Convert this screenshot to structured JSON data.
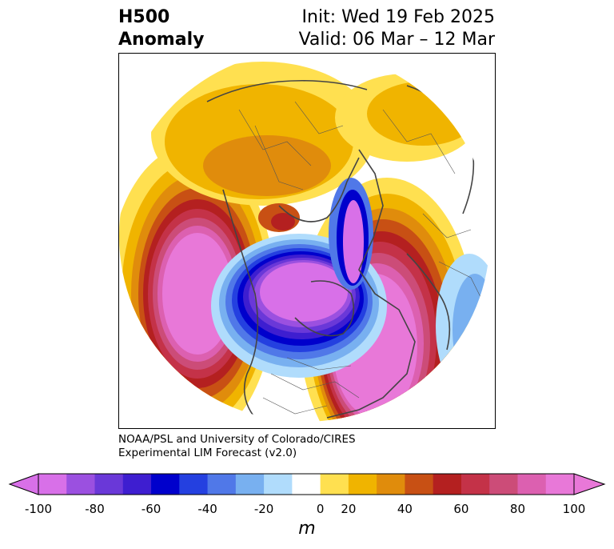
{
  "title": {
    "line1_left": "H500",
    "line2_left": "Anomaly",
    "line1_right": "Init: Wed 19 Feb 2025",
    "line2_right": "Valid: 06 Mar – 12 Mar"
  },
  "credit": {
    "line1": "NOAA/PSL and University of Colorado/CIRES",
    "line2": "Experimental LIM Forecast (v2.0)"
  },
  "colorbar": {
    "unit": "m",
    "tick_labels": [
      "-100",
      "-80",
      "-60",
      "-40",
      "-20",
      "0",
      "20",
      "40",
      "60",
      "80",
      "100"
    ],
    "levels": [
      -100,
      -90,
      -80,
      -70,
      -60,
      -50,
      -40,
      -30,
      -20,
      -10,
      10,
      20,
      30,
      40,
      50,
      60,
      70,
      80,
      90,
      100
    ],
    "colors": [
      "#d870e8",
      "#9b50e0",
      "#6a38d8",
      "#3e1ed0",
      "#0000cc",
      "#2440e0",
      "#5078e8",
      "#78b0f0",
      "#b0dcfc",
      "#ffffff",
      "#ffe050",
      "#f0b400",
      "#e08c0c",
      "#c85014",
      "#b42020",
      "#c43248",
      "#cc4c78",
      "#dc60b0",
      "#e878d8"
    ]
  },
  "map": {
    "projection": "north-polar-stereographic",
    "field": "500 hPa geopotential height anomaly"
  }
}
